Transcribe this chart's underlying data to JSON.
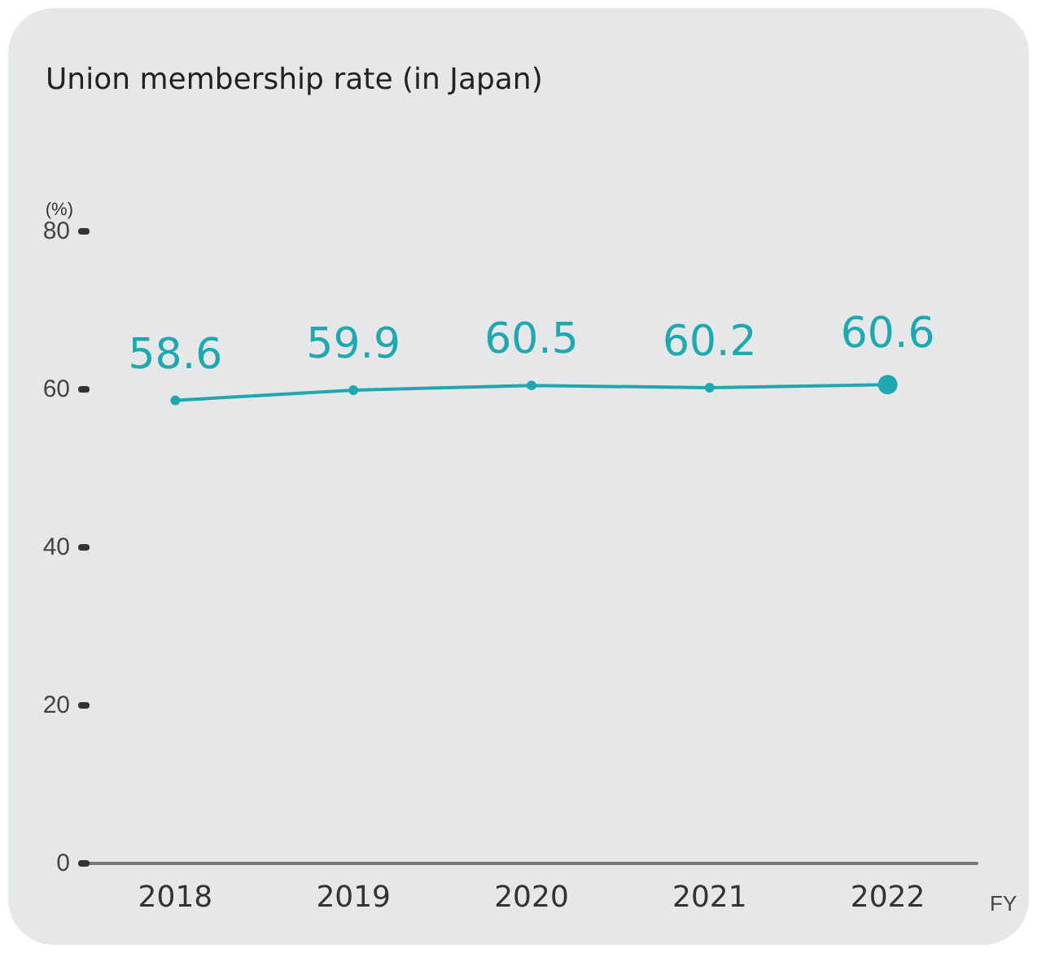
{
  "chart_data": {
    "type": "line",
    "title": "Union membership rate (in Japan)",
    "ylabel": "(%)",
    "xlabel": "FY",
    "categories": [
      "2018",
      "2019",
      "2020",
      "2021",
      "2022"
    ],
    "series": [
      {
        "color": "#1ea8b0",
        "values": [
          58.6,
          59.9,
          60.5,
          60.2,
          60.6
        ]
      }
    ],
    "ylim": [
      0,
      80
    ],
    "yticks": [
      0,
      20,
      40,
      60,
      80
    ],
    "grid": false,
    "marker": "circle",
    "data_labels": true
  }
}
